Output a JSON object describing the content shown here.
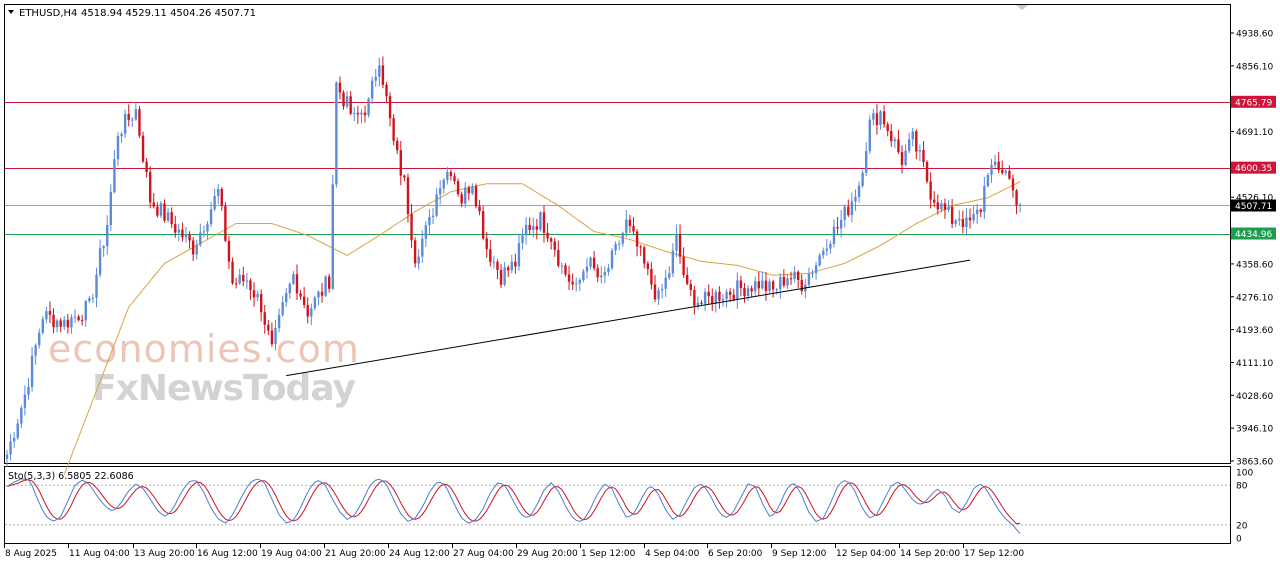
{
  "header": {
    "symbol_label": "ETHUSD,H4",
    "ohlc_label": "4518.94 4529.11 4504.26 4507.71"
  },
  "stoch_header": {
    "label": "Sto(5,3,3) 6.5805 22.6086"
  },
  "watermark": {
    "line1": "economies.com",
    "line2": "FxNewsToday"
  },
  "colors": {
    "bull": "#5b8bd6",
    "bear": "#d0131c",
    "ma": "#d9a441",
    "level_red": "#d0133a",
    "level_green": "#1d9e4f",
    "current_price": "#a0a0a0",
    "trendline": "#000000",
    "stoch_main": "#4a7fd1",
    "stoch_signal": "#d0131c"
  },
  "chart_data": [
    {
      "type": "candlestick",
      "symbol": "ETHUSD",
      "timeframe": "H4",
      "ylim": [
        3835,
        4960
      ],
      "price_ticks": [
        "4938.60",
        "4856.10",
        "4691.10",
        "4526.10",
        "4358.60",
        "4276.10",
        "4193.60",
        "4111.10",
        "4028.60",
        "3946.10",
        "3863.60"
      ],
      "time_ticks": [
        "8 Aug 2025",
        "11 Aug 04:00",
        "13 Aug 20:00",
        "16 Aug 12:00",
        "19 Aug 04:00",
        "21 Aug 20:00",
        "24 Aug 12:00",
        "27 Aug 04:00",
        "29 Aug 20:00",
        "1 Sep 12:00",
        "4 Sep 04:00",
        "6 Sep 20:00",
        "9 Sep 12:00",
        "12 Sep 04:00",
        "14 Sep 20:00",
        "17 Sep 12:00"
      ],
      "levels": [
        {
          "value": 4765.79,
          "label": "4765.79",
          "color": "level_red"
        },
        {
          "value": 4600.35,
          "label": "4600.35",
          "color": "level_red"
        },
        {
          "value": 4434.96,
          "label": "4434.96",
          "color": "level_green"
        }
      ],
      "current_price": {
        "value": 4507.71,
        "label": "4507.71"
      },
      "trendline": {
        "from": {
          "bar": 78,
          "price": 4078
        },
        "to": {
          "bar": 269,
          "price": 4368
        }
      },
      "anchor_points": [
        {
          "bar": 0,
          "price": 3880
        },
        {
          "bar": 5,
          "price": 4030
        },
        {
          "bar": 10,
          "price": 4230
        },
        {
          "bar": 16,
          "price": 4210
        },
        {
          "bar": 23,
          "price": 4250
        },
        {
          "bar": 28,
          "price": 4460
        },
        {
          "bar": 31,
          "price": 4690
        },
        {
          "bar": 36,
          "price": 4745
        },
        {
          "bar": 40,
          "price": 4520
        },
        {
          "bar": 47,
          "price": 4450
        },
        {
          "bar": 52,
          "price": 4400
        },
        {
          "bar": 56,
          "price": 4480
        },
        {
          "bar": 59,
          "price": 4540
        },
        {
          "bar": 63,
          "price": 4310
        },
        {
          "bar": 67,
          "price": 4320
        },
        {
          "bar": 71,
          "price": 4255
        },
        {
          "bar": 74,
          "price": 4140
        },
        {
          "bar": 77,
          "price": 4245
        },
        {
          "bar": 80,
          "price": 4330
        },
        {
          "bar": 84,
          "price": 4240
        },
        {
          "bar": 88,
          "price": 4290
        },
        {
          "bar": 90,
          "price": 4320
        },
        {
          "bar": 92,
          "price": 4810
        },
        {
          "bar": 97,
          "price": 4720
        },
        {
          "bar": 101,
          "price": 4760
        },
        {
          "bar": 104,
          "price": 4880
        },
        {
          "bar": 108,
          "price": 4660
        },
        {
          "bar": 111,
          "price": 4560
        },
        {
          "bar": 114,
          "price": 4380
        },
        {
          "bar": 118,
          "price": 4460
        },
        {
          "bar": 121,
          "price": 4570
        },
        {
          "bar": 124,
          "price": 4600
        },
        {
          "bar": 127,
          "price": 4520
        },
        {
          "bar": 130,
          "price": 4570
        },
        {
          "bar": 134,
          "price": 4400
        },
        {
          "bar": 138,
          "price": 4330
        },
        {
          "bar": 142,
          "price": 4360
        },
        {
          "bar": 145,
          "price": 4450
        },
        {
          "bar": 149,
          "price": 4470
        },
        {
          "bar": 152,
          "price": 4430
        },
        {
          "bar": 155,
          "price": 4350
        },
        {
          "bar": 159,
          "price": 4290
        },
        {
          "bar": 162,
          "price": 4370
        },
        {
          "bar": 166,
          "price": 4310
        },
        {
          "bar": 170,
          "price": 4390
        },
        {
          "bar": 173,
          "price": 4460
        },
        {
          "bar": 176,
          "price": 4400
        },
        {
          "bar": 179,
          "price": 4330
        },
        {
          "bar": 182,
          "price": 4270
        },
        {
          "bar": 185,
          "price": 4340
        },
        {
          "bar": 187,
          "price": 4420
        },
        {
          "bar": 190,
          "price": 4290
        },
        {
          "bar": 194,
          "price": 4260
        },
        {
          "bar": 198,
          "price": 4280
        },
        {
          "bar": 202,
          "price": 4290
        },
        {
          "bar": 206,
          "price": 4300
        },
        {
          "bar": 210,
          "price": 4310
        },
        {
          "bar": 214,
          "price": 4290
        },
        {
          "bar": 218,
          "price": 4330
        },
        {
          "bar": 222,
          "price": 4310
        },
        {
          "bar": 226,
          "price": 4360
        },
        {
          "bar": 229,
          "price": 4420
        },
        {
          "bar": 232,
          "price": 4450
        },
        {
          "bar": 235,
          "price": 4500
        },
        {
          "bar": 238,
          "price": 4560
        },
        {
          "bar": 241,
          "price": 4710
        },
        {
          "bar": 244,
          "price": 4740
        },
        {
          "bar": 247,
          "price": 4680
        },
        {
          "bar": 250,
          "price": 4620
        },
        {
          "bar": 253,
          "price": 4670
        },
        {
          "bar": 256,
          "price": 4600
        },
        {
          "bar": 258,
          "price": 4540
        },
        {
          "bar": 261,
          "price": 4500
        },
        {
          "bar": 264,
          "price": 4470
        },
        {
          "bar": 266,
          "price": 4480
        },
        {
          "bar": 268,
          "price": 4455
        },
        {
          "bar": 270,
          "price": 4470
        },
        {
          "bar": 272,
          "price": 4500
        },
        {
          "bar": 274,
          "price": 4600
        },
        {
          "bar": 277,
          "price": 4590
        },
        {
          "bar": 279,
          "price": 4600
        },
        {
          "bar": 281,
          "price": 4540
        },
        {
          "bar": 283,
          "price": 4508
        }
      ],
      "ma_anchor_points": [
        {
          "bar": 16,
          "price": 3830
        },
        {
          "bar": 25,
          "price": 4040
        },
        {
          "bar": 34,
          "price": 4250
        },
        {
          "bar": 44,
          "price": 4360
        },
        {
          "bar": 54,
          "price": 4410
        },
        {
          "bar": 64,
          "price": 4460
        },
        {
          "bar": 74,
          "price": 4460
        },
        {
          "bar": 84,
          "price": 4430
        },
        {
          "bar": 95,
          "price": 4380
        },
        {
          "bar": 104,
          "price": 4430
        },
        {
          "bar": 114,
          "price": 4490
        },
        {
          "bar": 124,
          "price": 4540
        },
        {
          "bar": 134,
          "price": 4560
        },
        {
          "bar": 144,
          "price": 4560
        },
        {
          "bar": 154,
          "price": 4505
        },
        {
          "bar": 164,
          "price": 4440
        },
        {
          "bar": 174,
          "price": 4420
        },
        {
          "bar": 184,
          "price": 4390
        },
        {
          "bar": 194,
          "price": 4365
        },
        {
          "bar": 204,
          "price": 4355
        },
        {
          "bar": 214,
          "price": 4330
        },
        {
          "bar": 224,
          "price": 4335
        },
        {
          "bar": 234,
          "price": 4360
        },
        {
          "bar": 244,
          "price": 4405
        },
        {
          "bar": 254,
          "price": 4460
        },
        {
          "bar": 264,
          "price": 4505
        },
        {
          "bar": 274,
          "price": 4525
        },
        {
          "bar": 283,
          "price": 4565
        }
      ],
      "bar_count": 284
    },
    {
      "type": "line",
      "title": "Sto(5,3,3) 6.5805 22.6086",
      "ylim": [
        0,
        100
      ],
      "levels": [
        80,
        20
      ],
      "y_ticks": [
        "100",
        "80",
        "20",
        "0"
      ],
      "series": [
        {
          "name": "main",
          "last_value": 6.5805
        },
        {
          "name": "signal",
          "last_value": 22.6086
        }
      ],
      "main_values": [
        78,
        85,
        90,
        88,
        60,
        35,
        25,
        30,
        55,
        80,
        88,
        80,
        62,
        48,
        40,
        52,
        70,
        82,
        75,
        58,
        40,
        32,
        45,
        68,
        85,
        88,
        70,
        45,
        28,
        22,
        38,
        62,
        82,
        90,
        85,
        60,
        35,
        22,
        28,
        50,
        75,
        88,
        82,
        60,
        40,
        28,
        35,
        55,
        80,
        90,
        85,
        62,
        38,
        25,
        30,
        48,
        72,
        86,
        80,
        55,
        32,
        22,
        28,
        45,
        70,
        85,
        78,
        55,
        35,
        30,
        48,
        72,
        84,
        70,
        45,
        28,
        24,
        40,
        65,
        82,
        75,
        50,
        30,
        38,
        62,
        80,
        70,
        45,
        28,
        35,
        58,
        78,
        82,
        65,
        42,
        30,
        38,
        60,
        82,
        78,
        50,
        30,
        45,
        72,
        85,
        68,
        40,
        25,
        30,
        55,
        82,
        88,
        75,
        48,
        30,
        35,
        58,
        80,
        85,
        70,
        55,
        50,
        62,
        75,
        65,
        45,
        38,
        55,
        78,
        82,
        65,
        45,
        30,
        20,
        6
      ]
    }
  ]
}
